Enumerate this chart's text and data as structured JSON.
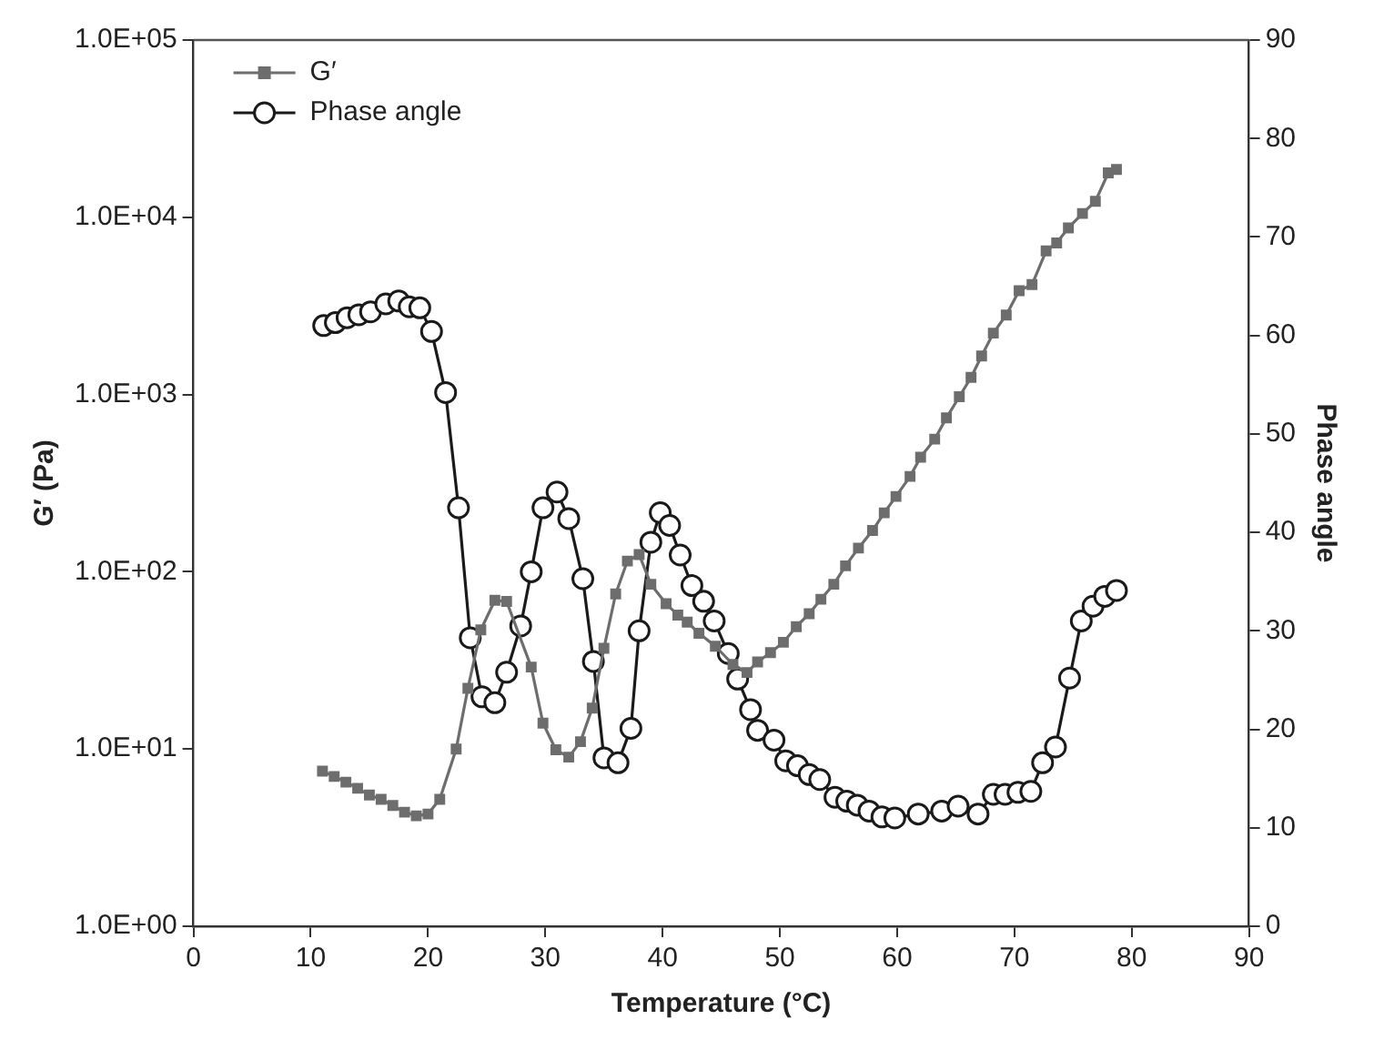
{
  "chart_data": {
    "type": "line",
    "xlabel": "Temperature (°C)",
    "ylabel": "G′ (Pa)",
    "y2label": "Phase angle",
    "log": "y",
    "grid": false,
    "legend": "top left",
    "xlim": [
      0,
      90
    ],
    "xticks": [
      0,
      10,
      20,
      30,
      40,
      50,
      60,
      70,
      80,
      90
    ],
    "ylim": [
      1,
      100000
    ],
    "yticks": [
      {
        "value": 1,
        "label": "1.0E+00"
      },
      {
        "value": 10,
        "label": "1.0E+01"
      },
      {
        "value": 100,
        "label": "1.0E+02"
      },
      {
        "value": 1000,
        "label": "1.0E+03"
      },
      {
        "value": 10000,
        "label": "1.0E+04"
      },
      {
        "value": 100000,
        "label": "1.0E+05"
      }
    ],
    "y2lim": [
      0,
      90
    ],
    "y2ticks": [
      0,
      10,
      20,
      30,
      40,
      50,
      60,
      70,
      80,
      90
    ],
    "series": [
      {
        "name": "G′",
        "color": "#6d6d6d",
        "marker": "square",
        "x": [
          11,
          12,
          13,
          14,
          15,
          16,
          17,
          18,
          19,
          20,
          21,
          22.4,
          23.4,
          24.5,
          25.7,
          26.7,
          28.8,
          29.8,
          30.9,
          32,
          33,
          34,
          35,
          36,
          37,
          38,
          39,
          40.3,
          41.3,
          42.1,
          43.1,
          44.5,
          46,
          47.2,
          48.1,
          49.2,
          50.3,
          51.4,
          52.5,
          53.5,
          54.6,
          55.6,
          56.7,
          57.9,
          58.9,
          59.9,
          61.1,
          62,
          63.2,
          64.2,
          65.3,
          66.3,
          67.2,
          68.2,
          69.3,
          70.4,
          71.5,
          72.7,
          73.6,
          74.6,
          75.8,
          76.9,
          78,
          78.7
        ],
        "values": [
          7.5,
          7,
          6.5,
          6,
          5.5,
          5.2,
          4.8,
          4.4,
          4.2,
          4.3,
          5.2,
          10,
          22,
          47,
          69,
          68,
          29,
          14,
          9.9,
          9,
          11,
          17,
          37,
          75,
          115,
          125,
          85,
          66,
          57,
          52,
          45,
          38,
          30,
          27,
          31,
          35,
          40,
          49,
          58,
          70,
          85,
          108,
          136,
          171,
          215,
          266,
          345,
          443,
          560,
          738,
          972,
          1250,
          1650,
          2220,
          2810,
          3850,
          4170,
          6460,
          7160,
          8710,
          10500,
          12300,
          17800,
          18600
        ]
      },
      {
        "name": "Phase angle",
        "color": "#1a1a1a",
        "marker": "circle",
        "axis": "y2",
        "x": [
          11.1,
          12.1,
          13.1,
          14.1,
          15.1,
          16.4,
          17.5,
          18.4,
          19.3,
          20.3,
          21.5,
          22.6,
          23.6,
          24.6,
          25.7,
          26.7,
          27.9,
          28.8,
          29.8,
          31,
          32,
          33.2,
          34.1,
          35,
          36.2,
          37.3,
          38,
          39,
          39.8,
          40.6,
          41.5,
          42.5,
          43.5,
          44.4,
          45.6,
          46.4,
          47.5,
          48.1,
          49.5,
          50.5,
          51.5,
          52.5,
          53.4,
          54.7,
          55.7,
          56.6,
          57.6,
          58.7,
          59.8,
          61.8,
          63.8,
          65.2,
          66.9,
          68.2,
          69.2,
          70.3,
          71.4,
          72.4,
          73.5,
          74.7,
          75.7,
          76.7,
          77.7,
          78.7
        ],
        "values": [
          61,
          61.3,
          61.8,
          62.1,
          62.4,
          63.2,
          63.5,
          62.9,
          62.8,
          60.4,
          54.2,
          42.5,
          29.3,
          23.3,
          22.7,
          25.8,
          30.5,
          36,
          42.5,
          44.1,
          41.4,
          35.3,
          26.9,
          17.1,
          16.6,
          20.1,
          30,
          39,
          42,
          40.7,
          37.7,
          34.6,
          33,
          31,
          27.7,
          25.1,
          22,
          19.9,
          18.9,
          16.8,
          16.3,
          15.4,
          14.9,
          13.1,
          12.7,
          12.3,
          11.7,
          11.1,
          11,
          11.4,
          11.7,
          12.2,
          11.4,
          13.4,
          13.4,
          13.6,
          13.7,
          16.6,
          18.2,
          25.2,
          31,
          32.5,
          33.5,
          34.1
        ]
      }
    ]
  }
}
